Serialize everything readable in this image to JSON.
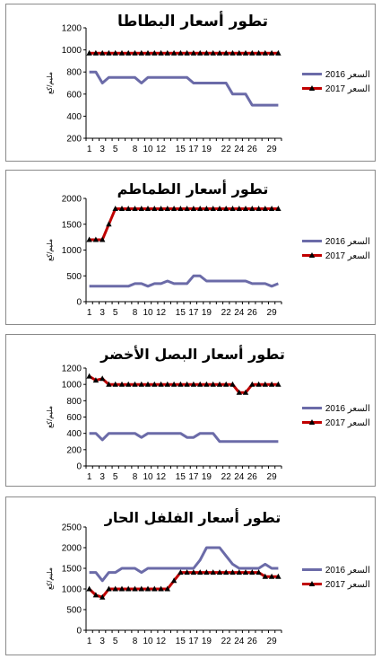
{
  "chart_data": [
    {
      "type": "line",
      "title": "تطور أسعار البطاطا",
      "ylabel": "مليم/كغ",
      "ylim": [
        200,
        1200
      ],
      "yticks": [
        200,
        400,
        600,
        800,
        1000,
        1200
      ],
      "x": [
        1,
        2,
        3,
        4,
        5,
        6,
        7,
        8,
        9,
        10,
        11,
        12,
        13,
        14,
        15,
        16,
        17,
        18,
        19,
        20,
        21,
        22,
        23,
        24,
        25,
        26,
        27,
        28,
        29,
        30
      ],
      "xticks": [
        "1",
        "3",
        "5",
        "8",
        "10",
        "12",
        "15",
        "17",
        "19",
        "22",
        "24",
        "26",
        "29"
      ],
      "legend": "right",
      "series": [
        {
          "name": "2016 السعر",
          "color": "#6b6ba8",
          "marker": "none",
          "values": [
            800,
            800,
            700,
            750,
            750,
            750,
            750,
            750,
            700,
            750,
            750,
            750,
            750,
            750,
            750,
            750,
            700,
            700,
            700,
            700,
            700,
            700,
            600,
            600,
            600,
            500,
            500,
            500,
            500,
            500
          ]
        },
        {
          "name": "2017 السعر",
          "color": "#c00000",
          "marker": "triangle",
          "values": [
            970,
            970,
            970,
            970,
            970,
            970,
            970,
            970,
            970,
            970,
            970,
            970,
            970,
            970,
            970,
            970,
            970,
            970,
            970,
            970,
            970,
            970,
            970,
            970,
            970,
            970,
            970,
            970,
            970,
            970
          ]
        }
      ]
    },
    {
      "type": "line",
      "title": "تطور أسعار الطماطم",
      "ylabel": "مليم/كغ",
      "ylim": [
        0,
        2000
      ],
      "yticks": [
        0,
        500,
        1000,
        1500,
        2000
      ],
      "x": [
        1,
        2,
        3,
        4,
        5,
        6,
        7,
        8,
        9,
        10,
        11,
        12,
        13,
        14,
        15,
        16,
        17,
        18,
        19,
        20,
        21,
        22,
        23,
        24,
        25,
        26,
        27,
        28,
        29,
        30
      ],
      "xticks": [
        "1",
        "3",
        "5",
        "8",
        "10",
        "12",
        "15",
        "17",
        "19",
        "22",
        "24",
        "26",
        "29"
      ],
      "legend": "right",
      "series": [
        {
          "name": "2016 السعر",
          "color": "#6b6ba8",
          "marker": "none",
          "values": [
            300,
            300,
            300,
            300,
            300,
            300,
            300,
            350,
            350,
            300,
            350,
            350,
            400,
            350,
            350,
            350,
            500,
            500,
            400,
            400,
            400,
            400,
            400,
            400,
            400,
            350,
            350,
            350,
            300,
            350
          ]
        },
        {
          "name": "2017 السعر",
          "color": "#c00000",
          "marker": "triangle",
          "values": [
            1200,
            1200,
            1200,
            1500,
            1800,
            1800,
            1800,
            1800,
            1800,
            1800,
            1800,
            1800,
            1800,
            1800,
            1800,
            1800,
            1800,
            1800,
            1800,
            1800,
            1800,
            1800,
            1800,
            1800,
            1800,
            1800,
            1800,
            1800,
            1800,
            1800
          ]
        }
      ]
    },
    {
      "type": "line",
      "title": "تطور أسعار البصل الأخضر",
      "ylabel": "مليم/كغ",
      "ylim": [
        0,
        1200
      ],
      "yticks": [
        0,
        200,
        400,
        600,
        800,
        1000,
        1200
      ],
      "x": [
        1,
        2,
        3,
        4,
        5,
        6,
        7,
        8,
        9,
        10,
        11,
        12,
        13,
        14,
        15,
        16,
        17,
        18,
        19,
        20,
        21,
        22,
        23,
        24,
        25,
        26,
        27,
        28,
        29,
        30
      ],
      "xticks": [
        "1",
        "3",
        "5",
        "8",
        "10",
        "12",
        "15",
        "17",
        "19",
        "22",
        "24",
        "26",
        "29"
      ],
      "legend": "right",
      "series": [
        {
          "name": "2016 السعر",
          "color": "#6b6ba8",
          "marker": "none",
          "values": [
            400,
            400,
            320,
            400,
            400,
            400,
            400,
            400,
            350,
            400,
            400,
            400,
            400,
            400,
            400,
            350,
            350,
            400,
            400,
            400,
            300,
            300,
            300,
            300,
            300,
            300,
            300,
            300,
            300,
            300
          ]
        },
        {
          "name": "2017 السعر",
          "color": "#c00000",
          "marker": "triangle",
          "values": [
            1100,
            1050,
            1070,
            1000,
            1000,
            1000,
            1000,
            1000,
            1000,
            1000,
            1000,
            1000,
            1000,
            1000,
            1000,
            1000,
            1000,
            1000,
            1000,
            1000,
            1000,
            1000,
            1000,
            900,
            900,
            1000,
            1000,
            1000,
            1000,
            1000
          ]
        }
      ]
    },
    {
      "type": "line",
      "title": "تطور أسعار الفلفل الحار",
      "ylabel": "مليم/كغ",
      "ylim": [
        0,
        2500
      ],
      "yticks": [
        0,
        500,
        1000,
        1500,
        2000,
        2500
      ],
      "x": [
        1,
        2,
        3,
        4,
        5,
        6,
        7,
        8,
        9,
        10,
        11,
        12,
        13,
        14,
        15,
        16,
        17,
        18,
        19,
        20,
        21,
        22,
        23,
        24,
        25,
        26,
        27,
        28,
        29,
        30
      ],
      "xticks": [
        "1",
        "3",
        "5",
        "8",
        "10",
        "12",
        "15",
        "17",
        "19",
        "22",
        "24",
        "26",
        "29"
      ],
      "legend": "right",
      "series": [
        {
          "name": "2016 السعر",
          "color": "#6b6ba8",
          "marker": "none",
          "values": [
            1400,
            1400,
            1200,
            1400,
            1400,
            1500,
            1500,
            1500,
            1400,
            1500,
            1500,
            1500,
            1500,
            1500,
            1500,
            1500,
            1500,
            1700,
            2000,
            2000,
            2000,
            1800,
            1600,
            1500,
            1500,
            1500,
            1500,
            1600,
            1500,
            1500
          ]
        },
        {
          "name": "2017 السعر",
          "color": "#c00000",
          "marker": "triangle",
          "values": [
            1000,
            850,
            800,
            1000,
            1000,
            1000,
            1000,
            1000,
            1000,
            1000,
            1000,
            1000,
            1000,
            1200,
            1400,
            1400,
            1400,
            1400,
            1400,
            1400,
            1400,
            1400,
            1400,
            1400,
            1400,
            1400,
            1400,
            1300,
            1300,
            1300
          ]
        }
      ]
    }
  ]
}
